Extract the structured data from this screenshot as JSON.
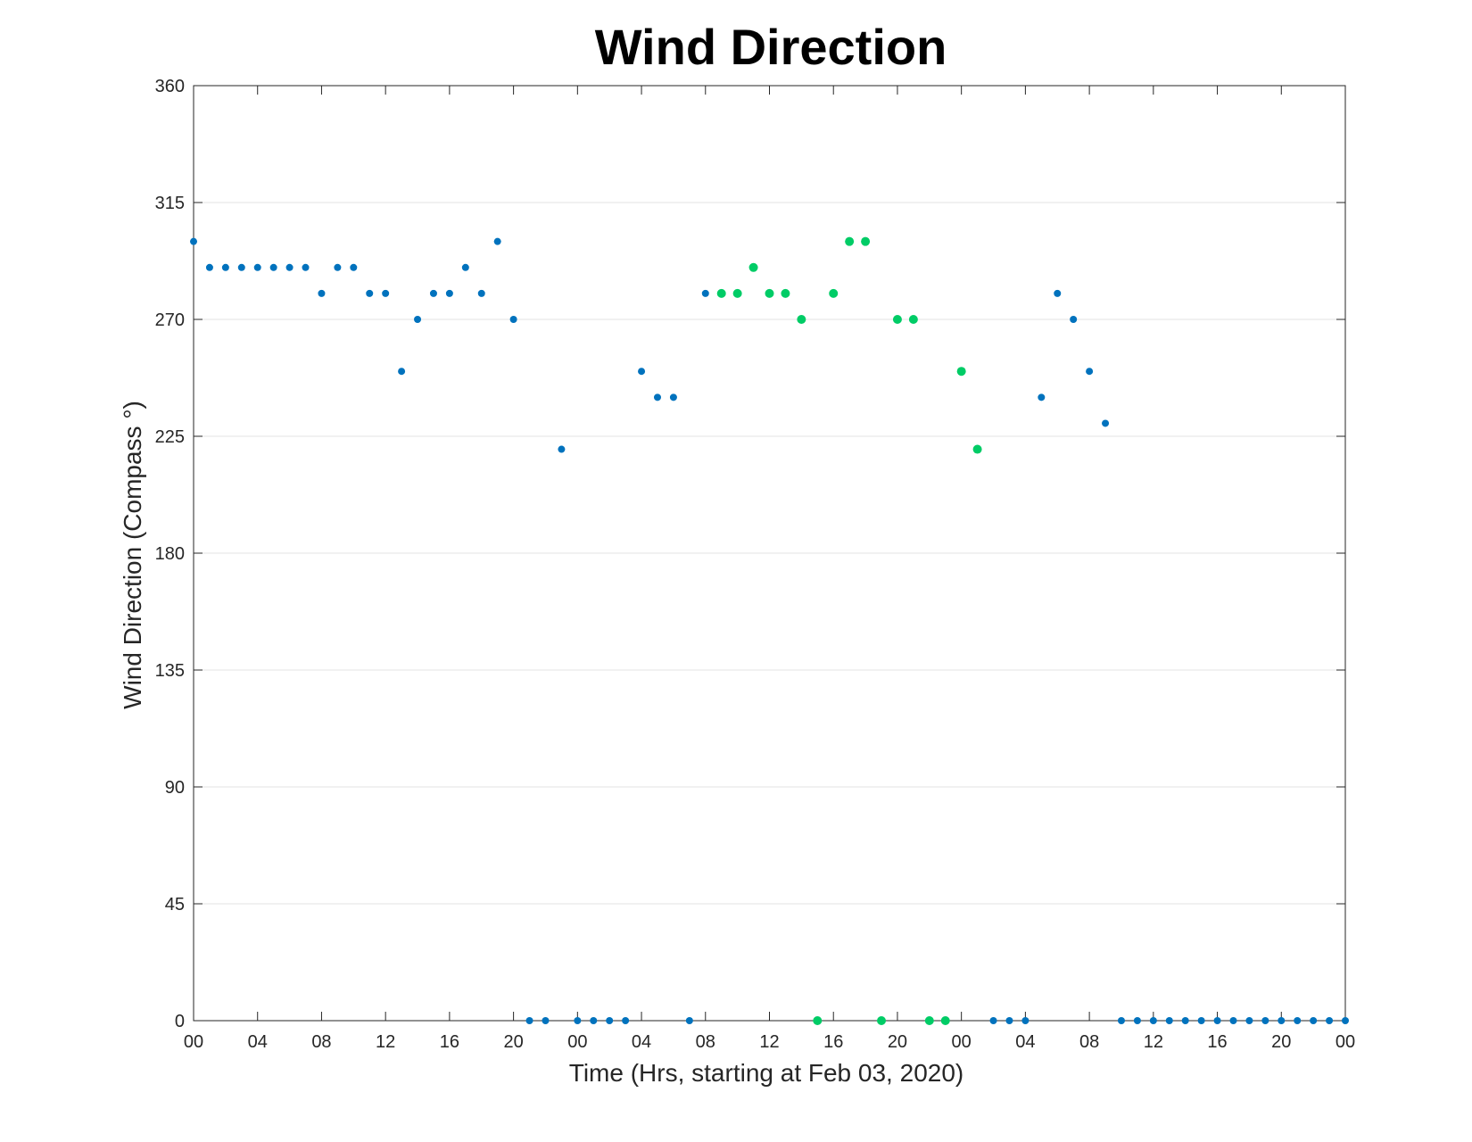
{
  "chart_data": {
    "type": "scatter",
    "title": "Wind Direction",
    "xlabel": "Time (Hrs, starting at Feb 03, 2020)",
    "ylabel": "Wind Direction (Compass °)",
    "ylim": [
      0,
      360
    ],
    "xlim_hours": [
      0,
      72
    ],
    "yticks": [
      0,
      45,
      90,
      135,
      180,
      225,
      270,
      315,
      360
    ],
    "xtick_hours": [
      0,
      4,
      8,
      12,
      16,
      20,
      24,
      28,
      32,
      36,
      40,
      44,
      48,
      52,
      56,
      60,
      64,
      68,
      72
    ],
    "xtick_labels": [
      "00",
      "04",
      "08",
      "12",
      "16",
      "20",
      "00",
      "04",
      "08",
      "12",
      "16",
      "20",
      "00",
      "04",
      "08",
      "12",
      "16",
      "20",
      "00"
    ],
    "grid": "horizontal",
    "colors": {
      "series_blue": "#0072BD",
      "series_green": "#00CC66",
      "grid": "#e3e3e3",
      "axis": "#262626"
    },
    "series": [
      {
        "color": "#0072BD",
        "points": [
          [
            0,
            300
          ],
          [
            1,
            290
          ],
          [
            2,
            290
          ],
          [
            3,
            290
          ],
          [
            4,
            290
          ],
          [
            5,
            290
          ],
          [
            6,
            290
          ],
          [
            7,
            290
          ],
          [
            8,
            280
          ],
          [
            9,
            290
          ],
          [
            10,
            290
          ],
          [
            11,
            280
          ],
          [
            12,
            280
          ],
          [
            13,
            250
          ],
          [
            14,
            270
          ],
          [
            15,
            280
          ],
          [
            16,
            280
          ],
          [
            17,
            290
          ],
          [
            18,
            280
          ],
          [
            19,
            300
          ],
          [
            20,
            270
          ],
          [
            21,
            0
          ],
          [
            22,
            0
          ],
          [
            23,
            220
          ],
          [
            24,
            0
          ],
          [
            25,
            0
          ],
          [
            26,
            0
          ],
          [
            27,
            0
          ],
          [
            28,
            250
          ],
          [
            29,
            240
          ],
          [
            30,
            240
          ],
          [
            31,
            0
          ],
          [
            32,
            280
          ],
          [
            50,
            0
          ],
          [
            51,
            0
          ],
          [
            52,
            0
          ],
          [
            53,
            240
          ],
          [
            54,
            280
          ],
          [
            55,
            270
          ],
          [
            56,
            250
          ],
          [
            57,
            230
          ],
          [
            58,
            0
          ],
          [
            59,
            0
          ],
          [
            60,
            0
          ],
          [
            61,
            0
          ],
          [
            62,
            0
          ],
          [
            63,
            0
          ],
          [
            64,
            0
          ],
          [
            65,
            0
          ],
          [
            66,
            0
          ],
          [
            67,
            0
          ],
          [
            68,
            0
          ],
          [
            69,
            0
          ],
          [
            70,
            0
          ],
          [
            71,
            0
          ],
          [
            72,
            0
          ]
        ]
      },
      {
        "color": "#00CC66",
        "points": [
          [
            33,
            280
          ],
          [
            34,
            280
          ],
          [
            35,
            290
          ],
          [
            36,
            280
          ],
          [
            37,
            280
          ],
          [
            38,
            270
          ],
          [
            39,
            0
          ],
          [
            40,
            280
          ],
          [
            41,
            300
          ],
          [
            42,
            300
          ],
          [
            43,
            0
          ],
          [
            44,
            270
          ],
          [
            45,
            270
          ],
          [
            46,
            0
          ],
          [
            47,
            0
          ],
          [
            48,
            250
          ],
          [
            49,
            220
          ]
        ]
      }
    ]
  }
}
